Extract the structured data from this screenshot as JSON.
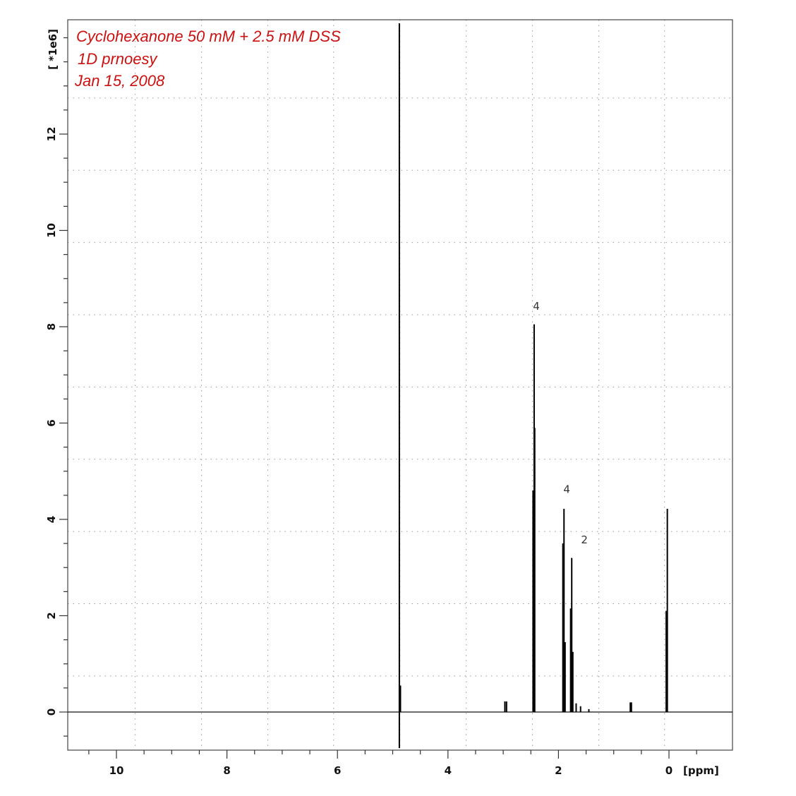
{
  "chart_data": {
    "type": "line",
    "title": "",
    "annotation_lines": [
      "Cyclohexanone 50 mM + 2.5 mM DSS",
      "1D prnoesy",
      "Jan 15, 2008"
    ],
    "xlabel": "[ppm]",
    "ylabel": "[ *1e6]",
    "x_reversed": true,
    "xlim": [
      10.85,
      -0.85
    ],
    "ylim": [
      -0.75,
      14.3
    ],
    "x_ticks": [
      10,
      8,
      6,
      4,
      2,
      0
    ],
    "x_tick_labels": [
      "10",
      "8",
      "6",
      "4",
      "2",
      "0"
    ],
    "y_ticks": [
      0,
      2,
      4,
      6,
      8,
      10,
      12
    ],
    "y_tick_labels": [
      "0",
      "2",
      "4",
      "6",
      "8",
      "10",
      "12"
    ],
    "grid": true,
    "grid_x": [
      9.66,
      8.46,
      7.26,
      6.07,
      4.87,
      3.67,
      2.47,
      1.27,
      0.08
    ],
    "grid_y": [
      0.75,
      2.25,
      3.75,
      5.25,
      6.75,
      8.25,
      9.75,
      11.25,
      12.75
    ],
    "series": [
      {
        "peaks": [
          {
            "ppm": 4.88,
            "intensity": 14.3
          },
          {
            "ppm": 4.88,
            "intensity": -0.75
          },
          {
            "ppm": 4.86,
            "intensity": 0.55
          },
          {
            "ppm": 2.97,
            "intensity": 0.22
          },
          {
            "ppm": 2.94,
            "intensity": 0.22
          },
          {
            "ppm": 2.46,
            "intensity": 4.6
          },
          {
            "ppm": 2.44,
            "intensity": 8.05
          },
          {
            "ppm": 2.43,
            "intensity": 5.9
          },
          {
            "ppm": 1.92,
            "intensity": 3.5
          },
          {
            "ppm": 1.9,
            "intensity": 4.22
          },
          {
            "ppm": 1.88,
            "intensity": 1.45
          },
          {
            "ppm": 1.78,
            "intensity": 2.15
          },
          {
            "ppm": 1.76,
            "intensity": 3.2
          },
          {
            "ppm": 1.74,
            "intensity": 1.25
          },
          {
            "ppm": 1.68,
            "intensity": 0.18
          },
          {
            "ppm": 1.6,
            "intensity": 0.12
          },
          {
            "ppm": 1.45,
            "intensity": 0.06
          },
          {
            "ppm": 0.7,
            "intensity": 0.2
          },
          {
            "ppm": 0.68,
            "intensity": 0.2
          },
          {
            "ppm": 0.05,
            "intensity": 2.1
          },
          {
            "ppm": 0.03,
            "intensity": 4.22
          }
        ]
      }
    ],
    "peak_labels": [
      {
        "text": "4",
        "ppm": 2.4,
        "intensity": 8.35
      },
      {
        "text": "4",
        "ppm": 1.85,
        "intensity": 4.55
      },
      {
        "text": "2",
        "ppm": 1.53,
        "intensity": 3.5
      }
    ]
  }
}
